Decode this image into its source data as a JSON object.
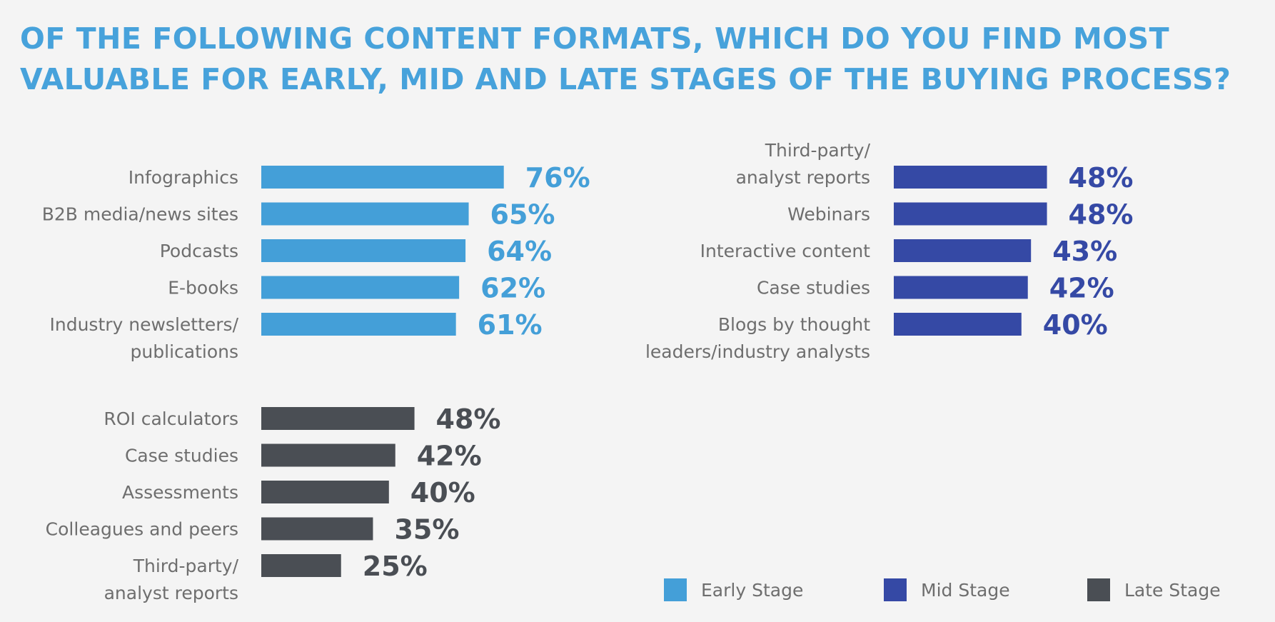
{
  "chart_data": [
    {
      "type": "bar",
      "orientation": "horizontal",
      "title": "OF THE FOLLOWING CONTENT FORMATS, WHICH DO YOU FIND MOST VALUABLE FOR EARLY, MID AND LATE STAGES OF THE BUYING PROCESS?",
      "series_name": "Early Stage",
      "color": "#449fd8",
      "categories": [
        [
          "Infographics"
        ],
        [
          "B2B media/news sites"
        ],
        [
          "Podcasts"
        ],
        [
          "E-books"
        ],
        [
          "Industry newsletters/",
          "publications"
        ]
      ],
      "values": [
        76,
        65,
        64,
        62,
        61
      ],
      "value_labels": [
        "76%",
        "65%",
        "64%",
        "62%",
        "61%"
      ],
      "unit": "%",
      "grid": false
    },
    {
      "type": "bar",
      "orientation": "horizontal",
      "series_name": "Mid Stage",
      "color": "#3549a5",
      "categories": [
        [
          "Third-party/",
          "analyst reports"
        ],
        [
          "Webinars"
        ],
        [
          "Interactive content"
        ],
        [
          "Case studies"
        ],
        [
          "Blogs by thought",
          "leaders/industry analysts"
        ]
      ],
      "values": [
        48,
        48,
        43,
        42,
        40
      ],
      "value_labels": [
        "48%",
        "48%",
        "43%",
        "42%",
        "40%"
      ],
      "unit": "%",
      "grid": false
    },
    {
      "type": "bar",
      "orientation": "horizontal",
      "series_name": "Late Stage",
      "color": "#4a4e54",
      "categories": [
        [
          "ROI calculators"
        ],
        [
          "Case studies"
        ],
        [
          "Assessments"
        ],
        [
          "Colleagues and peers"
        ],
        [
          "Third-party/",
          "analyst reports"
        ]
      ],
      "values": [
        48,
        42,
        40,
        35,
        25
      ],
      "value_labels": [
        "48%",
        "42%",
        "40%",
        "35%",
        "25%"
      ],
      "unit": "%",
      "grid": false
    }
  ],
  "title_lines": [
    "OF THE FOLLOWING CONTENT FORMATS, WHICH DO YOU FIND MOST",
    "VALUABLE FOR EARLY, MID AND LATE STAGES OF THE BUYING PROCESS?"
  ],
  "legend": {
    "placement": "bottom-right",
    "items": [
      {
        "label": "Early Stage",
        "color": "#449fd8"
      },
      {
        "label": "Mid Stage",
        "color": "#3549a5"
      },
      {
        "label": "Late Stage",
        "color": "#4a4e54"
      }
    ]
  }
}
